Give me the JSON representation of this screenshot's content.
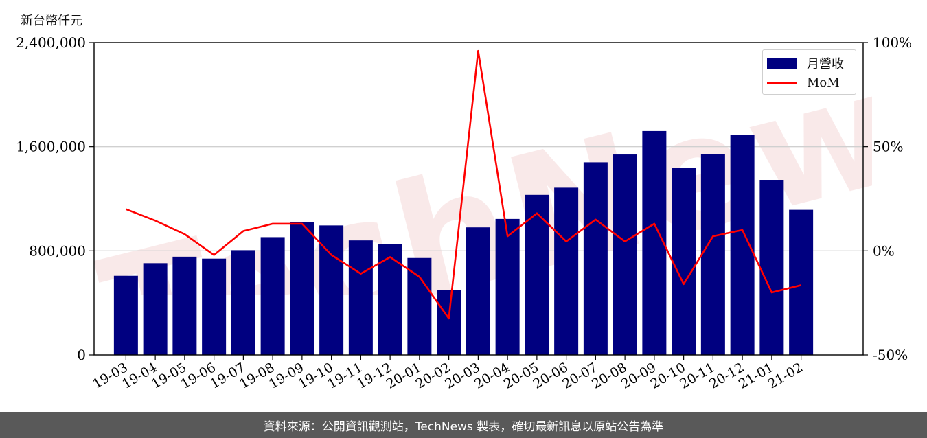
{
  "footer_text": "資料來源：公開資訊觀測站，TechNews 製表，確切最新訊息以原站公告為準",
  "watermark_text": "TechNews",
  "colors": {
    "bar": "#000080",
    "line": "#ff0000",
    "footer_bg": "#595959",
    "watermark": "#e8a0a0"
  },
  "chart_data": {
    "type": "bar",
    "ylabel": "新台幣仟元",
    "categories": [
      "19-03",
      "19-04",
      "19-05",
      "19-06",
      "19-07",
      "19-08",
      "19-09",
      "19-10",
      "19-11",
      "19-12",
      "20-01",
      "20-02",
      "20-03",
      "20-04",
      "20-05",
      "20-06",
      "20-07",
      "20-08",
      "20-09",
      "20-10",
      "20-11",
      "20-12",
      "21-01",
      "21-02"
    ],
    "series": [
      {
        "name": "月營收",
        "type": "bar",
        "axis": "left",
        "values": [
          608000,
          705000,
          755000,
          740000,
          805000,
          905000,
          1020000,
          995000,
          880000,
          850000,
          745000,
          500000,
          980000,
          1045000,
          1230000,
          1285000,
          1480000,
          1540000,
          1720000,
          1435000,
          1545000,
          1690000,
          1345000,
          1115000
        ]
      },
      {
        "name": "MoM",
        "type": "line",
        "axis": "right",
        "values": [
          20,
          14.5,
          8,
          -2,
          9.5,
          13,
          13,
          -2,
          -11,
          -3,
          -12.5,
          -32.5,
          96,
          7,
          18,
          4.5,
          15,
          4.5,
          13,
          -16,
          7,
          10,
          -20,
          -16.5
        ]
      }
    ],
    "yticks_left": [
      "0",
      "800,000",
      "1,600,000",
      "2,400,000"
    ],
    "yticks_right": [
      "-50%",
      "0%",
      "50%",
      "100%"
    ],
    "ylim_left": [
      0,
      2400000
    ],
    "ylim_right": [
      -50,
      100
    ],
    "grid": "horizontal",
    "legend_position": "top-right"
  }
}
